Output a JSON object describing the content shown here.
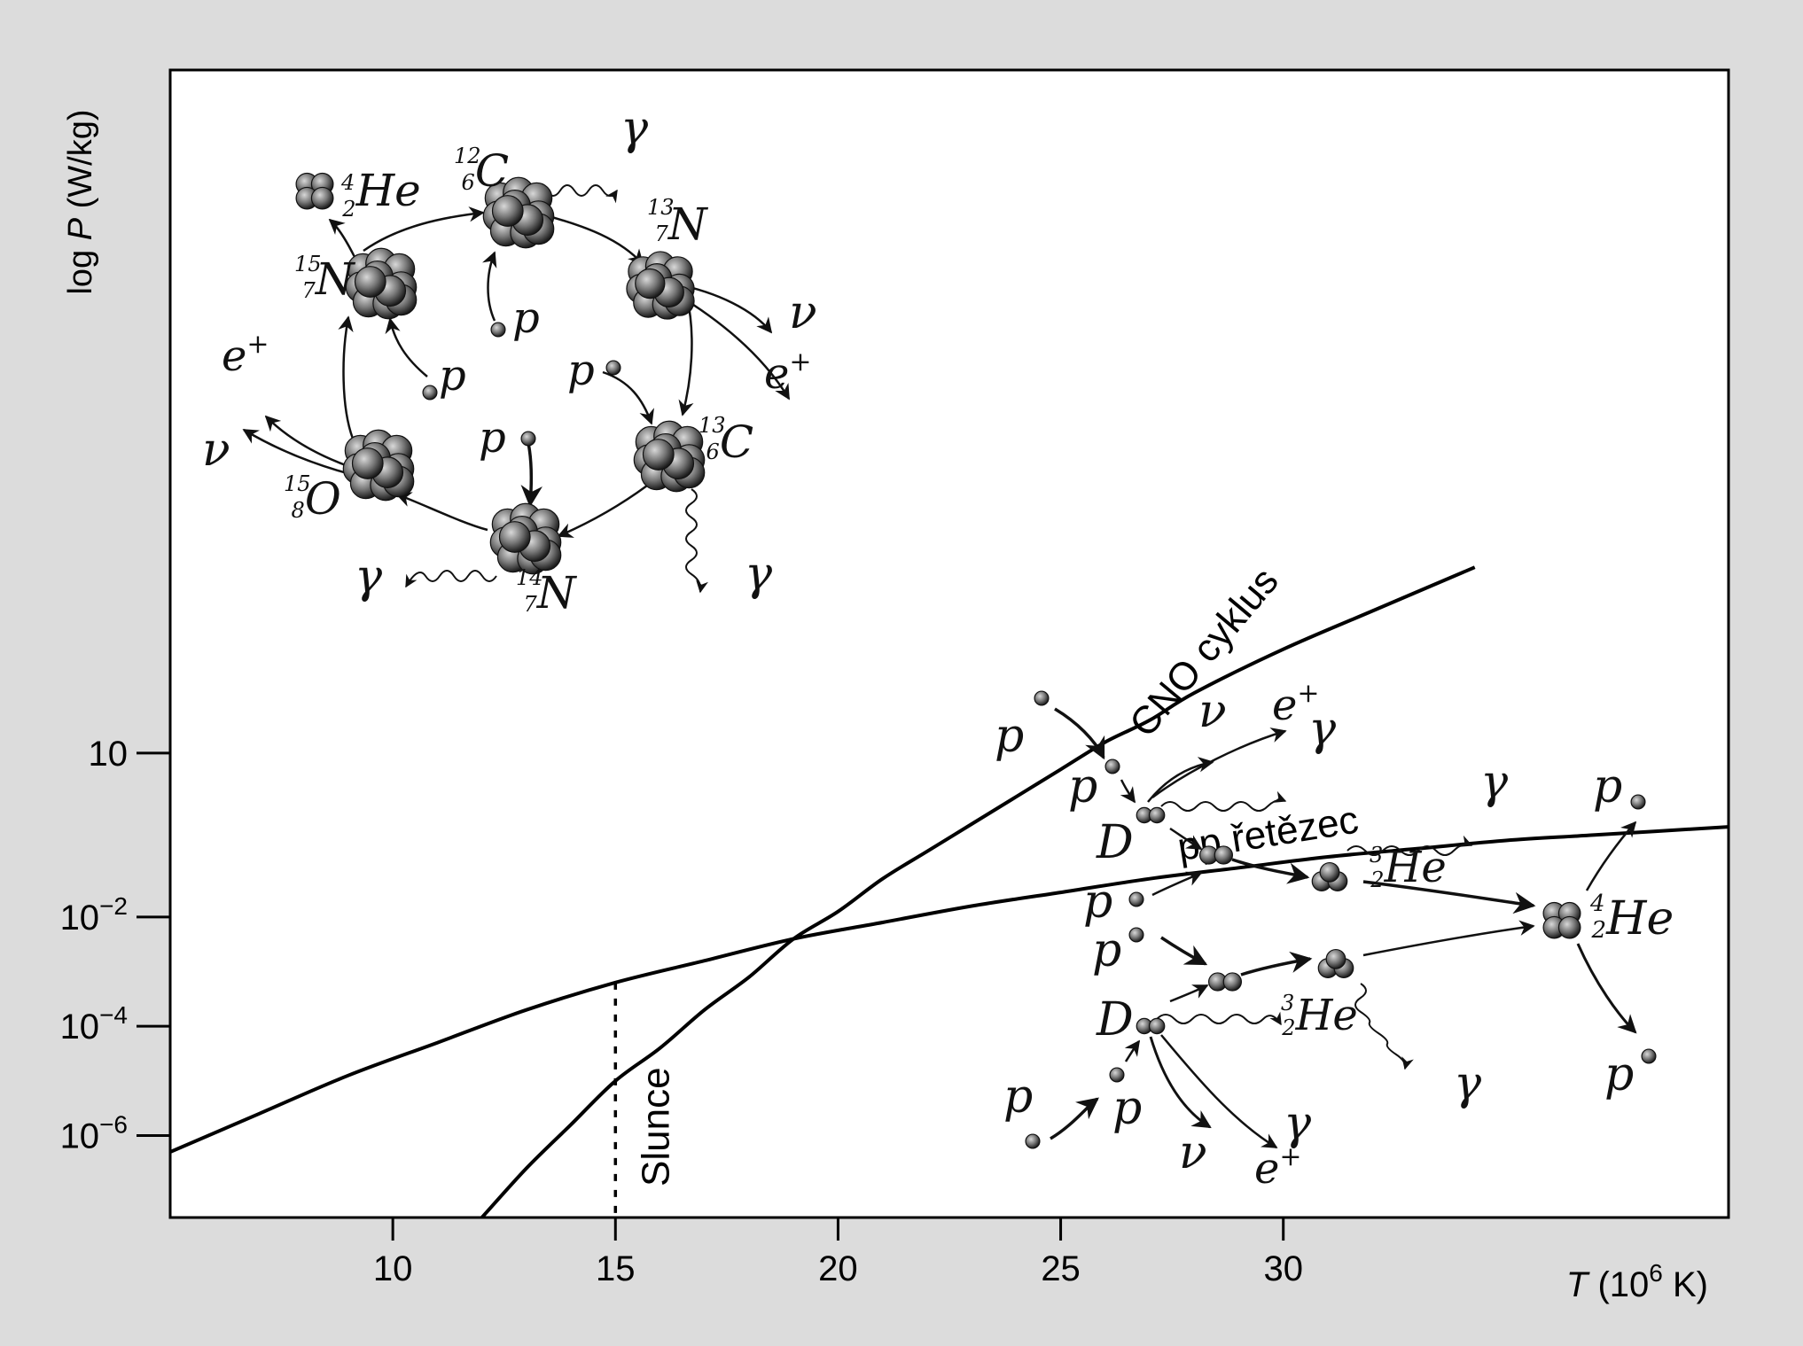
{
  "chart_data": {
    "type": "line",
    "ylabel_prefix": "log ",
    "ylabel_var": "P",
    "ylabel_unit": " (W/kg)",
    "xlabel_var": "T",
    "xlabel_unit_pre": " (10",
    "xlabel_exp": "6",
    "xlabel_unit_post": " K)",
    "xlim": [
      5,
      40
    ],
    "ylim": [
      -7.5,
      13.5
    ],
    "yscale": "log",
    "x_ticks": [
      10,
      15,
      20,
      25,
      30
    ],
    "x_tick_labels": [
      "10",
      "15",
      "20",
      "25",
      "30"
    ],
    "y_ticks": [
      1,
      -2,
      -4,
      -6
    ],
    "y_tick_labels": [
      {
        "base": "10",
        "exp": ""
      },
      {
        "base": "10",
        "exp": "−2"
      },
      {
        "base": "10",
        "exp": "−4"
      },
      {
        "base": "10",
        "exp": "−6"
      }
    ],
    "grid": false,
    "series": [
      {
        "name": "pp řetězec",
        "color": "#000000",
        "x": [
          5,
          7,
          9,
          11,
          13,
          15,
          17,
          19,
          21,
          23,
          25,
          27,
          29,
          31,
          33,
          35,
          37,
          40
        ],
        "y": [
          -6.3,
          -5.6,
          -4.9,
          -4.3,
          -3.7,
          -3.2,
          -2.8,
          -2.4,
          -2.1,
          -1.8,
          -1.55,
          -1.3,
          -1.1,
          -0.9,
          -0.75,
          -0.6,
          -0.5,
          -0.35
        ]
      },
      {
        "name": "CNO cyklus",
        "color": "#000000",
        "x": [
          12,
          13,
          14,
          15,
          16,
          17,
          18,
          19,
          20,
          21,
          22,
          23,
          24,
          25,
          26,
          27,
          28,
          30,
          32,
          34.3
        ],
        "y": [
          -7.5,
          -6.6,
          -5.8,
          -5.0,
          -4.4,
          -3.7,
          -3.1,
          -2.4,
          -1.9,
          -1.3,
          -0.8,
          -0.3,
          0.2,
          0.7,
          1.2,
          1.6,
          2.1,
          2.9,
          3.6,
          4.4
        ]
      }
    ],
    "vline": {
      "x": 15,
      "label": "Slunce",
      "style": "dotted"
    }
  },
  "annotations": {
    "cno_cycle": {
      "nuclei": [
        {
          "id": "he4",
          "mass": "4",
          "charge": "2",
          "symbol": "He"
        },
        {
          "id": "c12",
          "mass": "12",
          "charge": "6",
          "symbol": "C"
        },
        {
          "id": "n13",
          "mass": "13",
          "charge": "7",
          "symbol": "N"
        },
        {
          "id": "c13",
          "mass": "13",
          "charge": "6",
          "symbol": "C"
        },
        {
          "id": "n14",
          "mass": "14",
          "charge": "7",
          "symbol": "N"
        },
        {
          "id": "o15",
          "mass": "15",
          "charge": "8",
          "symbol": "O"
        },
        {
          "id": "n15",
          "mass": "15",
          "charge": "7",
          "symbol": "N"
        }
      ],
      "proton": "p",
      "gamma": "γ",
      "neutrino": "ν",
      "positron": "e",
      "positron_sup": "+"
    },
    "pp_chain": {
      "proton": "p",
      "deuteron": "D",
      "gamma": "γ",
      "neutrino": "ν",
      "positron": "e",
      "positron_sup": "+",
      "he3": {
        "mass": "3",
        "charge": "2",
        "symbol": "He"
      },
      "he4": {
        "mass": "4",
        "charge": "2",
        "symbol": "He"
      }
    }
  }
}
